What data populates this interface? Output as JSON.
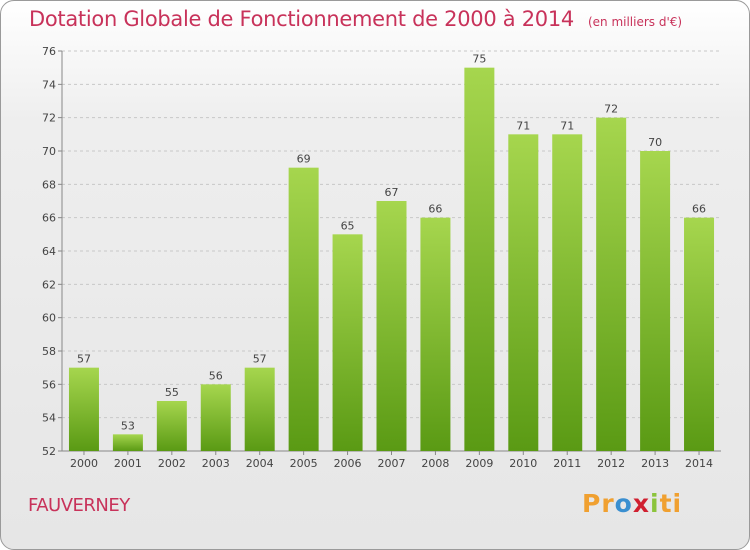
{
  "title": "Dotation Globale de Fonctionnement de 2000 à 2014",
  "subtitle": "(en milliers d'€)",
  "commune": "FAUVERNEY",
  "logo": {
    "p1": "Pr",
    "p2": "o",
    "p3": "x",
    "p4": "i",
    "p5": "ti"
  },
  "colors": {
    "bar_light": "#a6d64e",
    "bar_dark": "#5a9a14",
    "title": "#c8325a"
  },
  "chart_data": {
    "type": "bar",
    "categories": [
      "2000",
      "2001",
      "2002",
      "2003",
      "2004",
      "2005",
      "2006",
      "2007",
      "2008",
      "2009",
      "2010",
      "2011",
      "2012",
      "2013",
      "2014"
    ],
    "values": [
      57,
      53,
      55,
      56,
      57,
      69,
      65,
      67,
      66,
      75,
      71,
      71,
      72,
      70,
      66
    ],
    "ylim": [
      52,
      76
    ],
    "yticks": [
      52,
      54,
      56,
      58,
      60,
      62,
      64,
      66,
      68,
      70,
      72,
      74,
      76
    ],
    "grid": true
  }
}
